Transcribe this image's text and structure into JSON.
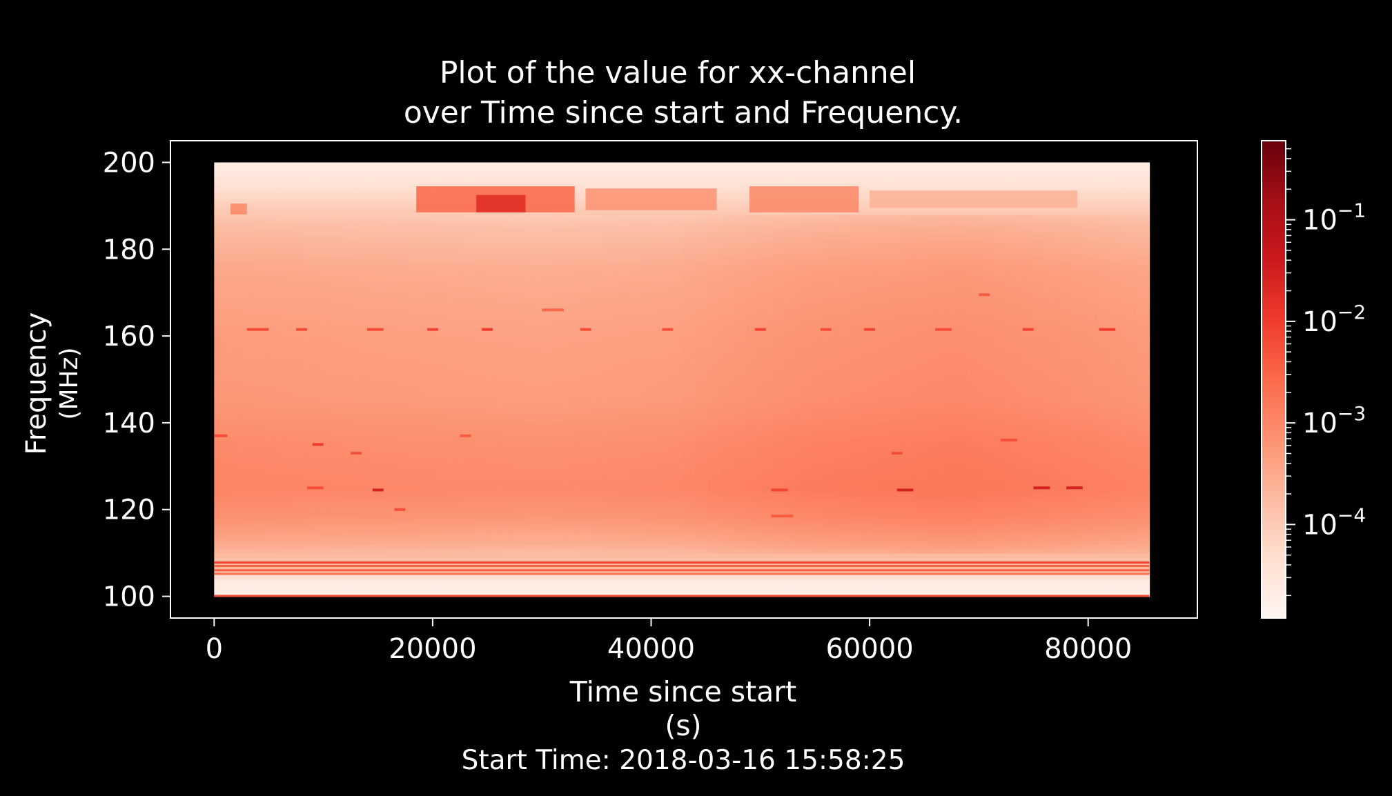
{
  "chart_data": {
    "type": "heatmap",
    "title_line1": "Plot of the value for xx-channel",
    "title_line2": "over Time since start and Frequency.",
    "xlabel_line1": "Time since start",
    "xlabel_line2": "(s)",
    "start_time_label": "Start Time: 2018-03-16 15:58:25",
    "ylabel_line1": "Frequency",
    "ylabel_line2": "(MHz)",
    "xlim": [
      -4000,
      90000
    ],
    "ylim": [
      95,
      205
    ],
    "x_ticks": [
      0,
      20000,
      40000,
      60000,
      80000
    ],
    "x_tick_labels": [
      "0",
      "20000",
      "40000",
      "60000",
      "80000"
    ],
    "y_ticks": [
      100,
      120,
      140,
      160,
      180,
      200
    ],
    "y_tick_labels": [
      "100",
      "120",
      "140",
      "160",
      "180",
      "200"
    ],
    "data_extent": {
      "x": [
        0,
        85600
      ],
      "y": [
        100,
        200
      ]
    },
    "colormap": "Reds",
    "color_scale": "log",
    "colorbar_range": [
      1.2e-05,
      0.6
    ],
    "colorbar_ticks": [
      0.0001,
      0.001,
      0.01,
      0.1
    ],
    "colorbar_tick_labels": [
      {
        "base": "10",
        "exp": "−4"
      },
      {
        "base": "10",
        "exp": "−3"
      },
      {
        "base": "10",
        "exp": "−2"
      },
      {
        "base": "10",
        "exp": "−1"
      }
    ],
    "band_profile": [
      {
        "freq_mhz": 100.0,
        "value": 2e-05
      },
      {
        "freq_mhz": 102.0,
        "value": 2e-05
      },
      {
        "freq_mhz": 104.0,
        "value": 2.5e-05
      },
      {
        "freq_mhz": 105.5,
        "value": 0.00012
      },
      {
        "freq_mhz": 107.0,
        "value": 0.00025
      },
      {
        "freq_mhz": 108.5,
        "value": 0.00015
      },
      {
        "freq_mhz": 112.0,
        "value": 0.00032
      },
      {
        "freq_mhz": 118.0,
        "value": 0.0007
      },
      {
        "freq_mhz": 125.0,
        "value": 0.0011
      },
      {
        "freq_mhz": 135.0,
        "value": 0.0009
      },
      {
        "freq_mhz": 145.0,
        "value": 0.0006
      },
      {
        "freq_mhz": 160.0,
        "value": 0.0005
      },
      {
        "freq_mhz": 175.0,
        "value": 0.00035
      },
      {
        "freq_mhz": 185.0,
        "value": 0.00018
      },
      {
        "freq_mhz": 190.0,
        "value": 9e-05
      },
      {
        "freq_mhz": 195.0,
        "value": 4e-05
      },
      {
        "freq_mhz": 200.0,
        "value": 2e-05
      }
    ],
    "time_gain_profile": [
      {
        "time_s": 0,
        "gain": 1.0
      },
      {
        "time_s": 15000,
        "gain": 0.9
      },
      {
        "time_s": 30000,
        "gain": 0.82
      },
      {
        "time_s": 42000,
        "gain": 0.9
      },
      {
        "time_s": 55000,
        "gain": 1.35
      },
      {
        "time_s": 68000,
        "gain": 1.6
      },
      {
        "time_s": 78000,
        "gain": 1.3
      },
      {
        "time_s": 85600,
        "gain": 1.05
      }
    ],
    "hotspots": [
      {
        "t_start": 18500,
        "t_end": 33000,
        "f_start": 188.5,
        "f_end": 194.5,
        "value": 0.003
      },
      {
        "t_start": 24000,
        "t_end": 28500,
        "f_start": 188.5,
        "f_end": 192.5,
        "value": 0.02
      },
      {
        "t_start": 34000,
        "t_end": 46000,
        "f_start": 189,
        "f_end": 194,
        "value": 0.0007
      },
      {
        "t_start": 49000,
        "t_end": 59000,
        "f_start": 188.5,
        "f_end": 194.5,
        "value": 0.001
      },
      {
        "t_start": 60000,
        "t_end": 79000,
        "f_start": 189.5,
        "f_end": 193.5,
        "value": 0.00025
      },
      {
        "t_start": 1500,
        "t_end": 3000,
        "f_start": 188,
        "f_end": 190.5,
        "value": 0.001
      }
    ],
    "rfi_lines": [
      {
        "t_start": 3000,
        "t_end": 5000,
        "f": 161.5,
        "value": 0.006
      },
      {
        "t_start": 7500,
        "t_end": 8500,
        "f": 161.5,
        "value": 0.006
      },
      {
        "t_start": 14000,
        "t_end": 15500,
        "f": 161.5,
        "value": 0.006
      },
      {
        "t_start": 19500,
        "t_end": 20500,
        "f": 161.5,
        "value": 0.008
      },
      {
        "t_start": 24500,
        "t_end": 25500,
        "f": 161.5,
        "value": 0.01
      },
      {
        "t_start": 33500,
        "t_end": 34500,
        "f": 161.5,
        "value": 0.006
      },
      {
        "t_start": 41000,
        "t_end": 42000,
        "f": 161.5,
        "value": 0.006
      },
      {
        "t_start": 49500,
        "t_end": 50500,
        "f": 161.5,
        "value": 0.008
      },
      {
        "t_start": 55500,
        "t_end": 56500,
        "f": 161.5,
        "value": 0.006
      },
      {
        "t_start": 59500,
        "t_end": 60500,
        "f": 161.5,
        "value": 0.008
      },
      {
        "t_start": 66000,
        "t_end": 67500,
        "f": 161.5,
        "value": 0.006
      },
      {
        "t_start": 74000,
        "t_end": 75000,
        "f": 161.5,
        "value": 0.008
      },
      {
        "t_start": 81000,
        "t_end": 82500,
        "f": 161.5,
        "value": 0.01
      },
      {
        "t_start": 0,
        "t_end": 1200,
        "f": 137,
        "value": 0.006
      },
      {
        "t_start": 9000,
        "t_end": 10000,
        "f": 135,
        "value": 0.01
      },
      {
        "t_start": 12500,
        "t_end": 13500,
        "f": 133,
        "value": 0.005
      },
      {
        "t_start": 22500,
        "t_end": 23500,
        "f": 137,
        "value": 0.004
      },
      {
        "t_start": 62000,
        "t_end": 63000,
        "f": 133,
        "value": 0.006
      },
      {
        "t_start": 72000,
        "t_end": 73500,
        "f": 136,
        "value": 0.006
      },
      {
        "t_start": 8500,
        "t_end": 10000,
        "f": 125,
        "value": 0.006
      },
      {
        "t_start": 14500,
        "t_end": 15500,
        "f": 124.5,
        "value": 0.03
      },
      {
        "t_start": 51000,
        "t_end": 52500,
        "f": 124.5,
        "value": 0.008
      },
      {
        "t_start": 62500,
        "t_end": 64000,
        "f": 124.5,
        "value": 0.03
      },
      {
        "t_start": 75000,
        "t_end": 76500,
        "f": 125,
        "value": 0.03
      },
      {
        "t_start": 78000,
        "t_end": 79500,
        "f": 125,
        "value": 0.03
      },
      {
        "t_start": 16500,
        "t_end": 17500,
        "f": 120,
        "value": 0.006
      },
      {
        "t_start": 51000,
        "t_end": 53000,
        "f": 118.5,
        "value": 0.004
      },
      {
        "t_start": 70000,
        "t_end": 71000,
        "f": 169.5,
        "value": 0.004
      },
      {
        "t_start": 30000,
        "t_end": 32000,
        "f": 166,
        "value": 0.003
      }
    ],
    "horizontal_bands": [
      {
        "f": 100.1,
        "value": 0.006
      },
      {
        "f": 105.2,
        "value": 0.002
      },
      {
        "f": 106.0,
        "value": 0.004
      },
      {
        "f": 107.0,
        "value": 0.003
      },
      {
        "f": 107.8,
        "value": 0.008
      }
    ]
  }
}
